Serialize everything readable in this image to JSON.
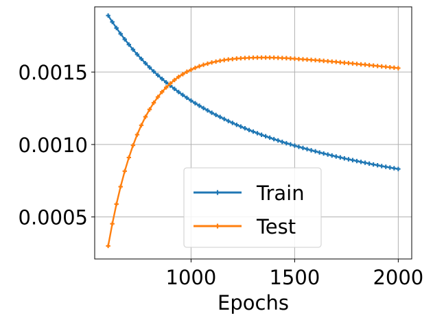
{
  "chart_data": {
    "type": "line",
    "title": "",
    "xlabel": "Epochs",
    "ylabel": "",
    "xlim": [
      535,
      2065
    ],
    "ylim": [
      0.00021,
      0.00195
    ],
    "xticks": [
      1000,
      1500,
      2000
    ],
    "xtick_labels": [
      "1000",
      "1500",
      "2000"
    ],
    "yticks": [
      0.0005,
      0.001,
      0.0015
    ],
    "ytick_labels": [
      "0.0005",
      "0.0010",
      "0.0015"
    ],
    "grid": true,
    "legend_position": "lower-center",
    "colors": {
      "Train": "#1f77b4",
      "Test": "#ff7f0e",
      "grid": "#b0b0b0"
    },
    "x": [
      600,
      620,
      640,
      660,
      680,
      700,
      720,
      740,
      760,
      780,
      800,
      820,
      840,
      860,
      880,
      900,
      920,
      940,
      960,
      980,
      1000,
      1020,
      1040,
      1060,
      1080,
      1100,
      1120,
      1140,
      1160,
      1180,
      1200,
      1220,
      1240,
      1260,
      1280,
      1300,
      1320,
      1340,
      1360,
      1380,
      1400,
      1420,
      1440,
      1460,
      1480,
      1500,
      1520,
      1540,
      1560,
      1580,
      1600,
      1620,
      1640,
      1660,
      1680,
      1700,
      1720,
      1740,
      1760,
      1780,
      1800,
      1820,
      1840,
      1860,
      1880,
      1900,
      1920,
      1940,
      1960,
      1980,
      2000
    ],
    "series": [
      {
        "name": "Train",
        "values": [
          0.00189,
          0.001846,
          0.001804,
          0.001764,
          0.001726,
          0.00169,
          0.001655,
          0.001622,
          0.001591,
          0.001561,
          0.001532,
          0.001504,
          0.001478,
          0.001453,
          0.001429,
          0.001406,
          0.001384,
          0.001362,
          0.001342,
          0.001322,
          0.001303,
          0.001285,
          0.001268,
          0.001251,
          0.001235,
          0.001219,
          0.001204,
          0.00119,
          0.001176,
          0.001162,
          0.001149,
          0.001136,
          0.001124,
          0.001112,
          0.0011,
          0.001089,
          0.001078,
          0.001067,
          0.001057,
          0.001047,
          0.001037,
          0.001028,
          0.001018,
          0.001009,
          0.001001,
          0.000992,
          0.000984,
          0.000976,
          0.000968,
          0.00096,
          0.000953,
          0.000945,
          0.000938,
          0.000931,
          0.000924,
          0.000917,
          0.000911,
          0.000904,
          0.000898,
          0.000892,
          0.000886,
          0.00088,
          0.000874,
          0.000868,
          0.000862,
          0.000857,
          0.000851,
          0.000846,
          0.000841,
          0.000836,
          0.000831
        ]
      },
      {
        "name": "Test",
        "values": [
          0.0003,
          0.000453,
          0.000589,
          0.000709,
          0.000816,
          0.00091,
          0.000994,
          0.001068,
          0.001133,
          0.001191,
          0.001242,
          0.001288,
          0.001328,
          0.001363,
          0.001394,
          0.001421,
          0.001445,
          0.001467,
          0.001485,
          0.001502,
          0.001516,
          0.001529,
          0.00154,
          0.00155,
          0.001558,
          0.001566,
          0.001572,
          0.001578,
          0.001583,
          0.001587,
          0.00159,
          0.001593,
          0.001595,
          0.001597,
          0.001598,
          0.001599,
          0.0016,
          0.0016,
          0.0016,
          0.0016,
          0.001599,
          0.001598,
          0.001597,
          0.001596,
          0.001594,
          0.001592,
          0.00159,
          0.001588,
          0.001586,
          0.001584,
          0.001582,
          0.00158,
          0.001577,
          0.001575,
          0.001572,
          0.00157,
          0.001567,
          0.001564,
          0.001562,
          0.001559,
          0.001556,
          0.001553,
          0.001551,
          0.001548,
          0.001545,
          0.001542,
          0.001539,
          0.001536,
          0.001533,
          0.00153,
          0.001527
        ]
      }
    ]
  }
}
